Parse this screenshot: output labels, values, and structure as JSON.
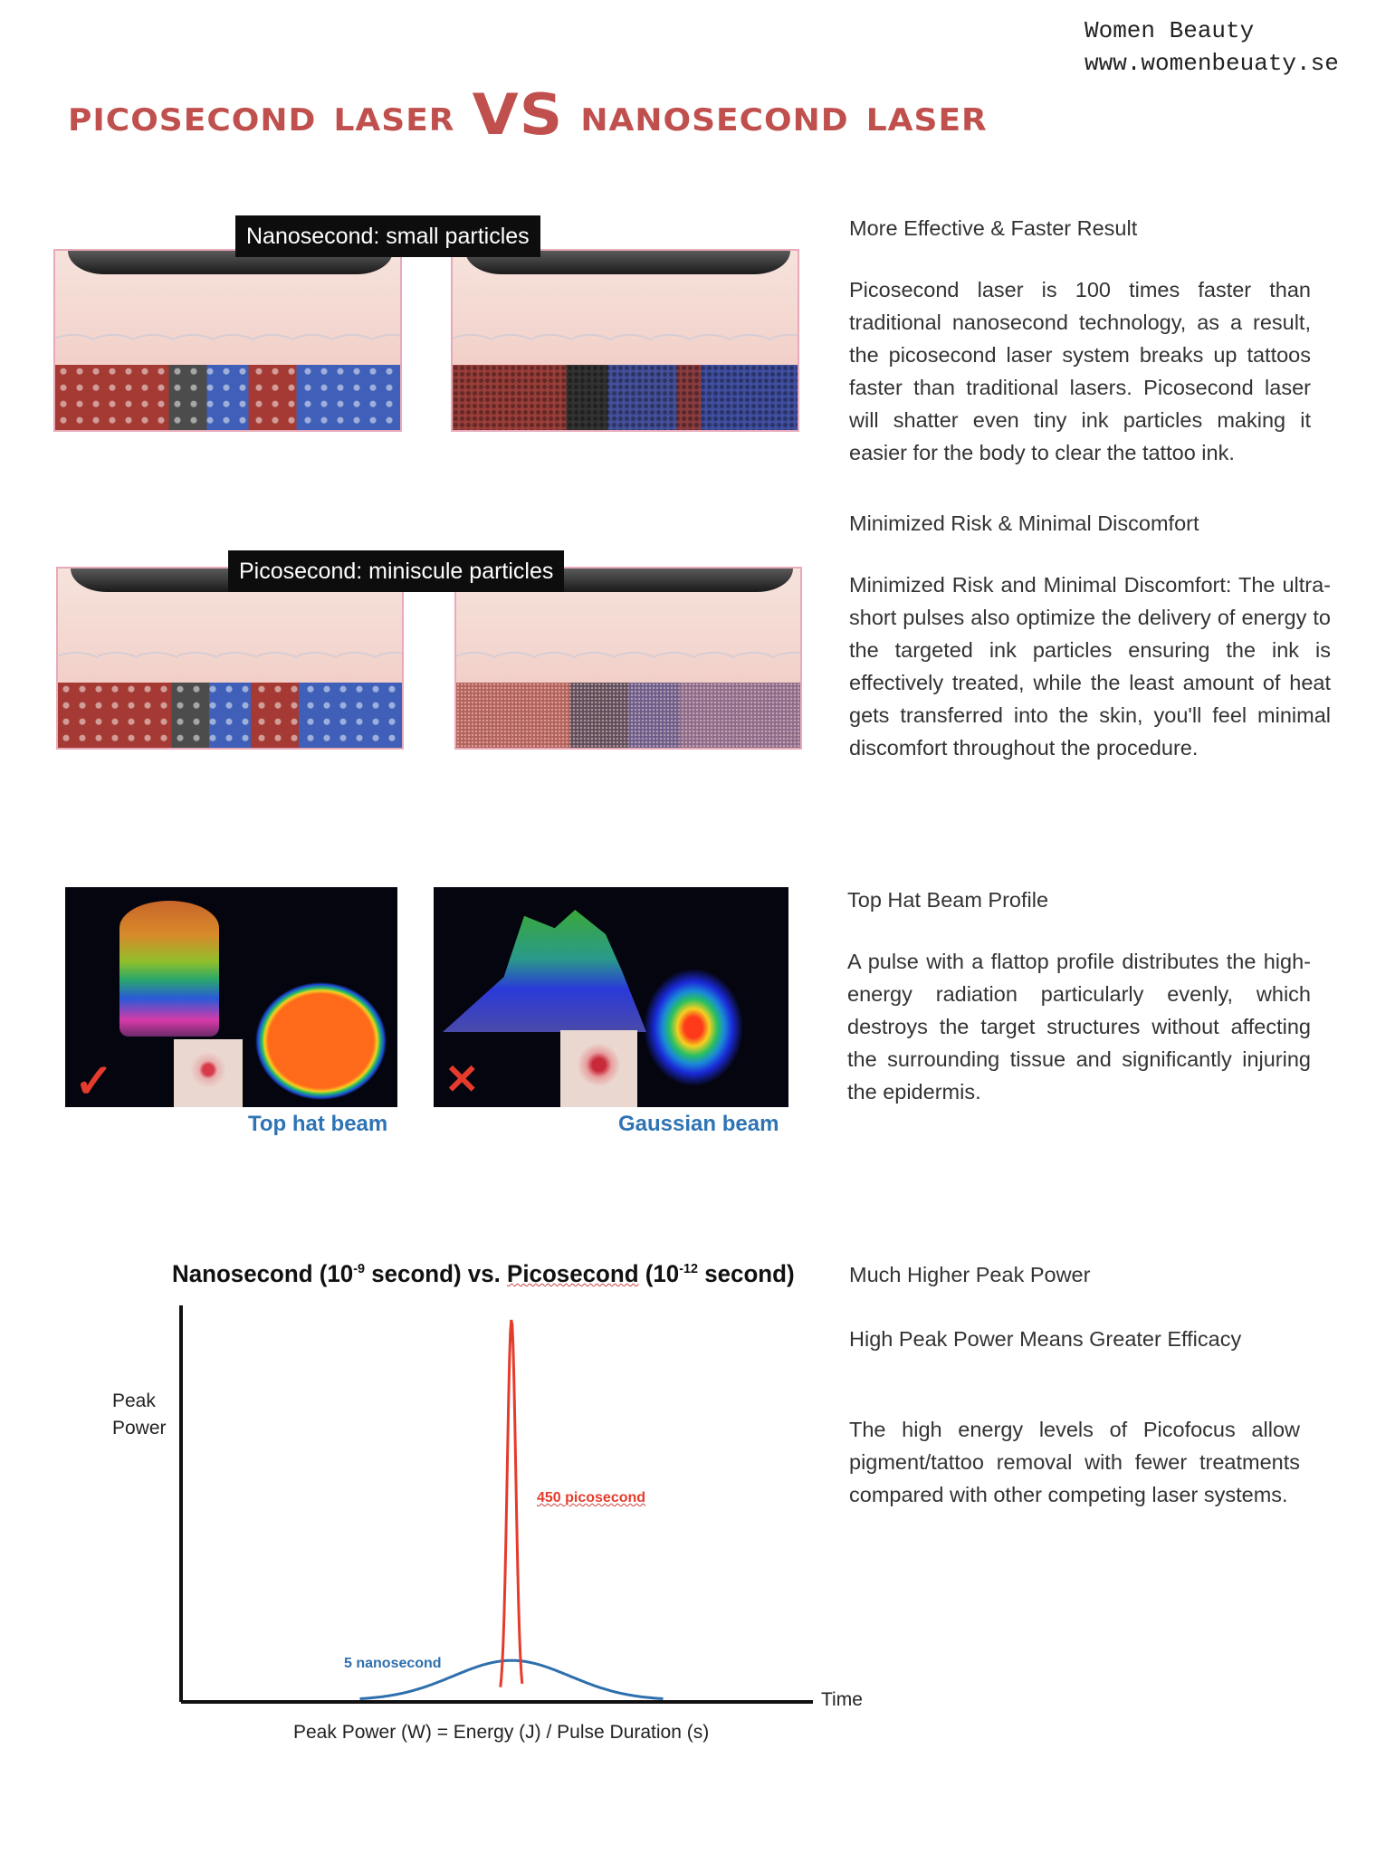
{
  "brand": {
    "name": "Women Beauty",
    "url": "www.womenbeuaty.se"
  },
  "title": {
    "left": "Picosecond Laser",
    "vs": "VS",
    "right": "Nanosecond Laser",
    "color": "#c0504d"
  },
  "illustrations": {
    "nanosecond_label": "Nanosecond: small particles",
    "picosecond_label": "Picosecond: miniscule particles"
  },
  "beams": {
    "top_hat": {
      "caption": "Top hat beam",
      "mark": "check-icon"
    },
    "gaussian": {
      "caption": "Gaussian beam",
      "mark": "cross-icon"
    },
    "caption_color": "#2e74b5"
  },
  "sections": [
    {
      "heading": "More Effective & Faster Result",
      "body": "Picosecond laser  is 100 times faster than traditional nanosecond technology, as a result, the picosecond laser system breaks up tattoos faster than traditional lasers. Picosecond laser will shatter even tiny ink particles making it easier for the body to clear the tattoo ink."
    },
    {
      "heading": "Minimized Risk & Minimal Discomfort",
      "body": "Minimized Risk and Minimal Discomfort: The ultra-short pulses also optimize the delivery of energy to the targeted ink particles ensuring the ink is effectively treated, while the least amount of heat gets transferred into the skin, you'll feel minimal discomfort throughout the procedure."
    },
    {
      "heading": "Top Hat Beam Profile",
      "body": "A pulse with a flattop profile distributes the high-energy radiation particularly evenly, which destroys the target structures without affecting the surrounding tissue and significantly injuring the epidermis."
    },
    {
      "heading": "Much Higher Peak Power",
      "subheading": "High Peak Power Means Greater Efficacy",
      "body": "The high energy levels of Picofocus allow pigment/tattoo removal with fewer treatments compared with other competing laser systems."
    }
  ],
  "chart_data": {
    "type": "line",
    "title_parts": {
      "a": "Nanosecond (10",
      "a_sup": "-9",
      "b": " second) vs. ",
      "c": "Picosecond",
      "d": " (10",
      "d_sup": "-12",
      "e": " second)"
    },
    "ylabel": [
      "Peak",
      "Power"
    ],
    "xlabel": "Time",
    "formula": "Peak Power (W) = Energy (J) / Pulse Duration (s)",
    "grid": false,
    "series": [
      {
        "name": "5 nanosecond",
        "color": "#2e6fad",
        "shape": "gaussian",
        "relative_peak": 0.1,
        "relative_width": 0.48
      },
      {
        "name": "450 picosecond",
        "color": "#e53b2c",
        "shape": "narrow-spike",
        "relative_peak": 0.96,
        "relative_width": 0.035
      }
    ]
  }
}
